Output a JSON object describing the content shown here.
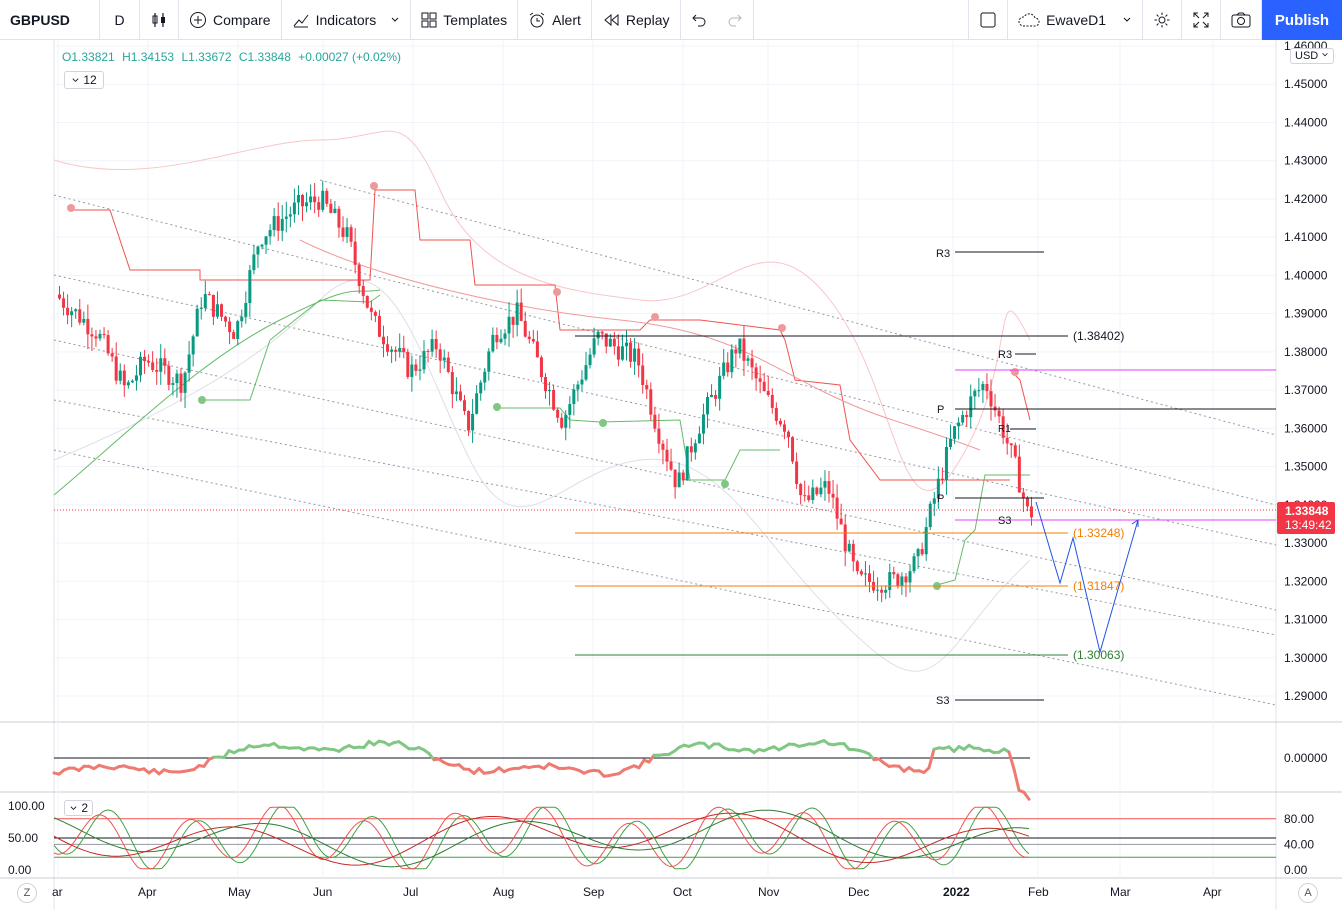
{
  "toolbar": {
    "symbol": "GBPUSD",
    "interval": "D",
    "compare": "Compare",
    "indicators": "Indicators",
    "templates": "Templates",
    "alert": "Alert",
    "replay": "Replay",
    "layout_name": "EwaveD1",
    "publish": "Publish"
  },
  "legend": {
    "open": "O1.33821",
    "high": "H1.34153",
    "low": "L1.33672",
    "close": "C1.33848",
    "change": "+0.00027 (+0.02%)",
    "collapsed_count": "12",
    "osc_count": "2"
  },
  "price_axis": {
    "currency": "USD",
    "ticks": [
      "1.46000",
      "1.45000",
      "1.44000",
      "1.43000",
      "1.42000",
      "1.41000",
      "1.40000",
      "1.39000",
      "1.38000",
      "1.37000",
      "1.36000",
      "1.35000",
      "1.34000",
      "1.33000",
      "1.32000",
      "1.31000",
      "1.30000",
      "1.29000"
    ],
    "last_price": "1.33848",
    "countdown": "13:49:42"
  },
  "osc1_axis": {
    "ticks": [
      "0.00000"
    ]
  },
  "osc2_axis": {
    "ticks": [
      "80.00",
      "40.00",
      "0.00"
    ],
    "left_ticks": [
      "100.00",
      "50.00",
      "0.00"
    ]
  },
  "time_axis": {
    "labels": [
      "ar",
      "Apr",
      "May",
      "Jun",
      "Jul",
      "Aug",
      "Sep",
      "Oct",
      "Nov",
      "Dec",
      "2022",
      "Feb",
      "Mar",
      "Apr"
    ]
  },
  "levels": {
    "l1": "(1.38402)",
    "l2": "(1.33248)",
    "l3": "(1.31847)",
    "l4": "(1.30063)",
    "r3_top": "R3",
    "r3_mid": "R3",
    "p_mid": "P",
    "p_low": "P",
    "s3_mid": "S3",
    "s3_low": "S3",
    "r1": "R1"
  },
  "bottom": {
    "left_btn": "Z",
    "right_btn": "A"
  },
  "colors": {
    "up": "#26a69a",
    "candle_up": "#089981",
    "candle_down": "#f23645",
    "accent": "#2962ff",
    "orange": "#f57c00",
    "magenta": "#e040fb"
  }
}
